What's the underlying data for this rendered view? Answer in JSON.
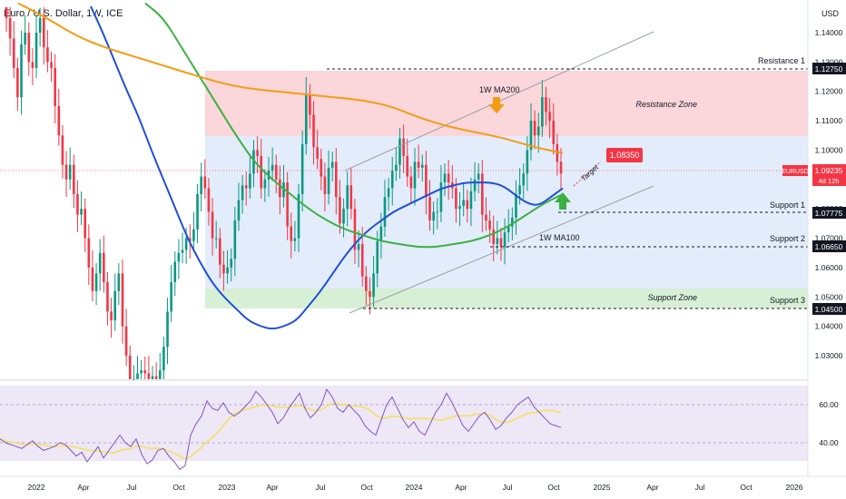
{
  "header": {
    "title": "Euro / U.S. Dollar, 1W, ICE",
    "currency": "USD"
  },
  "price_axis": {
    "ticks": [
      "1.14000",
      "1.13000",
      "1.12000",
      "1.11000",
      "1.10000",
      "1.09000",
      "1.08000",
      "1.07000",
      "1.06000",
      "1.05000",
      "1.04000",
      "1.03000"
    ]
  },
  "levels": {
    "resistance1": {
      "label": "Resistance 1",
      "price": "1.12750"
    },
    "support1": {
      "label": "Support 1",
      "price": "1.07775"
    },
    "support2": {
      "label": "Support 2",
      "price": "1.06650"
    },
    "support3": {
      "label": "Support 3",
      "price": "1.04500"
    }
  },
  "zones": {
    "resistance": "Resistance Zone",
    "support": "Support Zone"
  },
  "annotations": {
    "ma200": "1W MA200",
    "ma100": "1W MA100",
    "target_price": "1.08350",
    "target_word": "Target"
  },
  "current_price": {
    "symbol": "EURUSD",
    "price": "1.09235",
    "countdown": "4d 12h"
  },
  "rsi_axis": {
    "ticks": [
      "60.00",
      "40.00"
    ]
  },
  "time_axis": {
    "ticks": [
      "2022",
      "Apr",
      "Jul",
      "Oct",
      "2023",
      "Apr",
      "Jul",
      "Oct",
      "2024",
      "Apr",
      "Jul",
      "Oct",
      "2025",
      "Apr",
      "Jul",
      "Oct",
      "2026"
    ]
  },
  "colors": {
    "up": "#089981",
    "down": "#f23645",
    "ma200": "#f39c12",
    "ma100": "#3cb043",
    "ma50": "#1e4fd8",
    "rsi": "#7e57c2",
    "rsi_ma": "#f5e05a",
    "resistance_zone": "#fbd6da",
    "middle_zone": "#e3ecfb",
    "support_zone": "#d7f0d5"
  },
  "chart_data": {
    "type": "candlestick",
    "symbol": "EURUSD",
    "timeframe": "1W",
    "ylim": [
      1.022,
      1.15
    ],
    "closes": [
      1.145,
      1.138,
      1.128,
      1.118,
      1.136,
      1.14,
      1.13,
      1.128,
      1.14,
      1.145,
      1.135,
      1.13,
      1.128,
      1.115,
      1.105,
      1.095,
      1.09,
      1.095,
      1.085,
      1.078,
      1.08,
      1.07,
      1.06,
      1.052,
      1.058,
      1.065,
      1.055,
      1.045,
      1.042,
      1.052,
      1.058,
      1.04,
      1.03,
      1.022,
      1.022,
      1.024,
      1.025,
      1.024,
      1.022,
      1.023,
      1.022,
      1.025,
      1.033,
      1.045,
      1.055,
      1.062,
      1.065,
      1.066,
      1.07,
      1.069,
      1.073,
      1.085,
      1.091,
      1.087,
      1.079,
      1.07,
      1.07,
      1.061,
      1.058,
      1.06,
      1.063,
      1.076,
      1.083,
      1.088,
      1.087,
      1.092,
      1.1,
      1.098,
      1.087,
      1.09,
      1.093,
      1.095,
      1.09,
      1.084,
      1.089,
      1.074,
      1.069,
      1.07,
      1.085,
      1.102,
      1.119,
      1.112,
      1.101,
      1.097,
      1.091,
      1.085,
      1.094,
      1.096,
      1.084,
      1.075,
      1.08,
      1.088,
      1.08,
      1.066,
      1.068,
      1.057,
      1.052,
      1.05,
      1.058,
      1.069,
      1.074,
      1.084,
      1.087,
      1.093,
      1.095,
      1.104,
      1.098,
      1.091,
      1.087,
      1.096,
      1.094,
      1.095,
      1.084,
      1.076,
      1.079,
      1.079,
      1.089,
      1.092,
      1.089,
      1.087,
      1.08,
      1.081,
      1.083,
      1.08,
      1.086,
      1.09,
      1.092,
      1.078,
      1.076,
      1.073,
      1.068,
      1.07,
      1.067,
      1.072,
      1.074,
      1.077,
      1.085,
      1.088,
      1.092,
      1.1,
      1.11,
      1.105,
      1.108,
      1.118,
      1.113,
      1.11,
      1.102,
      1.096,
      1.092
    ],
    "ma50": [
      1.149,
      1.14,
      1.13,
      1.12,
      1.111,
      1.1,
      1.09,
      1.08,
      1.07,
      1.062,
      1.055,
      1.05,
      1.046,
      1.042,
      1.04,
      1.039,
      1.04,
      1.042,
      1.047,
      1.052,
      1.058,
      1.064,
      1.069,
      1.073,
      1.076,
      1.079,
      1.081,
      1.083,
      1.085,
      1.087,
      1.088,
      1.089,
      1.089,
      1.089,
      1.088,
      1.085,
      1.082,
      1.081,
      1.084,
      1.087
    ],
    "ma100": [
      1.15,
      1.145,
      1.135,
      1.125,
      1.115,
      1.105,
      1.096,
      1.09,
      1.085,
      1.08,
      1.076,
      1.073,
      1.071,
      1.069,
      1.068,
      1.067,
      1.067,
      1.068,
      1.069,
      1.071,
      1.074,
      1.078,
      1.082,
      1.085
    ],
    "ma200": [
      1.15,
      1.145,
      1.139,
      1.135,
      1.132,
      1.129,
      1.126,
      1.123,
      1.121,
      1.12,
      1.119,
      1.118,
      1.117,
      1.115,
      1.111,
      1.108,
      1.106,
      1.104,
      1.101,
      1.099
    ],
    "rsi": [
      42,
      40,
      39,
      38,
      37,
      39,
      41,
      38,
      36,
      37,
      38,
      40,
      39,
      36,
      33,
      35,
      30,
      34,
      38,
      32,
      36,
      40,
      44,
      40,
      38,
      42,
      34,
      29,
      31,
      36,
      37,
      33,
      30,
      26,
      28,
      44,
      50,
      54,
      62,
      58,
      57,
      61,
      56,
      54,
      56,
      59,
      62,
      67,
      64,
      60,
      56,
      50,
      53,
      58,
      62,
      66,
      58,
      53,
      56,
      60,
      68,
      64,
      58,
      56,
      60,
      57,
      54,
      49,
      46,
      44,
      52,
      60,
      64,
      58,
      52,
      48,
      51,
      46,
      44,
      50,
      56,
      60,
      66,
      61,
      55,
      49,
      46,
      50,
      54,
      56,
      52,
      47,
      49,
      53,
      56,
      60,
      62,
      64,
      59,
      56,
      53,
      50,
      49,
      48
    ]
  }
}
